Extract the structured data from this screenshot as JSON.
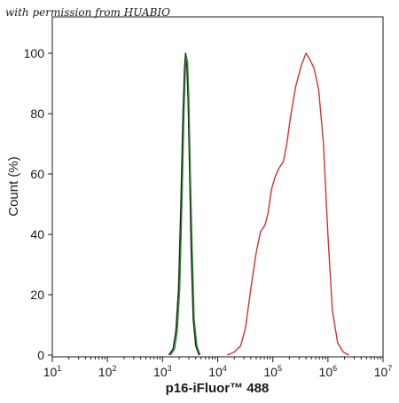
{
  "watermark": "with permission from HUABIO",
  "chart_data": {
    "type": "line",
    "title": "",
    "xlabel": "p16-iFluor™ 488",
    "ylabel": "Count  (%)",
    "xscale": "log",
    "xlim": [
      10,
      10000000
    ],
    "ylim": [
      0,
      100
    ],
    "x_tick_exponents": [
      1,
      2,
      3,
      4,
      5,
      6,
      7
    ],
    "y_ticks": [
      0,
      20,
      40,
      60,
      80,
      100
    ],
    "grid": false,
    "legend": "none",
    "series": [
      {
        "color": "#1a1a1a",
        "points": [
          [
            1300,
            0
          ],
          [
            1550,
            2
          ],
          [
            1750,
            8
          ],
          [
            1950,
            22
          ],
          [
            2150,
            50
          ],
          [
            2350,
            80
          ],
          [
            2500,
            95
          ],
          [
            2620,
            100
          ],
          [
            2750,
            97
          ],
          [
            2900,
            85
          ],
          [
            3100,
            60
          ],
          [
            3300,
            35
          ],
          [
            3600,
            12
          ],
          [
            4000,
            3
          ],
          [
            4600,
            0
          ]
        ]
      },
      {
        "color": "#2e8b2e",
        "points": [
          [
            1400,
            0
          ],
          [
            1650,
            2
          ],
          [
            1850,
            8
          ],
          [
            2050,
            22
          ],
          [
            2250,
            50
          ],
          [
            2450,
            80
          ],
          [
            2600,
            95
          ],
          [
            2720,
            99
          ],
          [
            2850,
            97
          ],
          [
            3000,
            85
          ],
          [
            3200,
            60
          ],
          [
            3450,
            35
          ],
          [
            3750,
            12
          ],
          [
            4200,
            3
          ],
          [
            4800,
            0
          ]
        ]
      },
      {
        "color": "#cc3333",
        "points": [
          [
            15000,
            0
          ],
          [
            20000,
            1
          ],
          [
            26000,
            3
          ],
          [
            32000,
            9
          ],
          [
            40000,
            22
          ],
          [
            50000,
            34
          ],
          [
            60000,
            41
          ],
          [
            72000,
            43
          ],
          [
            82000,
            47
          ],
          [
            95000,
            55
          ],
          [
            110000,
            59
          ],
          [
            130000,
            62
          ],
          [
            155000,
            64
          ],
          [
            180000,
            70
          ],
          [
            210000,
            79
          ],
          [
            260000,
            89
          ],
          [
            330000,
            96
          ],
          [
            400000,
            100
          ],
          [
            470000,
            98
          ],
          [
            560000,
            95
          ],
          [
            680000,
            88
          ],
          [
            830000,
            70
          ],
          [
            1000000,
            40
          ],
          [
            1200000,
            15
          ],
          [
            1500000,
            4
          ],
          [
            1900000,
            1
          ],
          [
            2400000,
            0
          ]
        ]
      }
    ]
  }
}
